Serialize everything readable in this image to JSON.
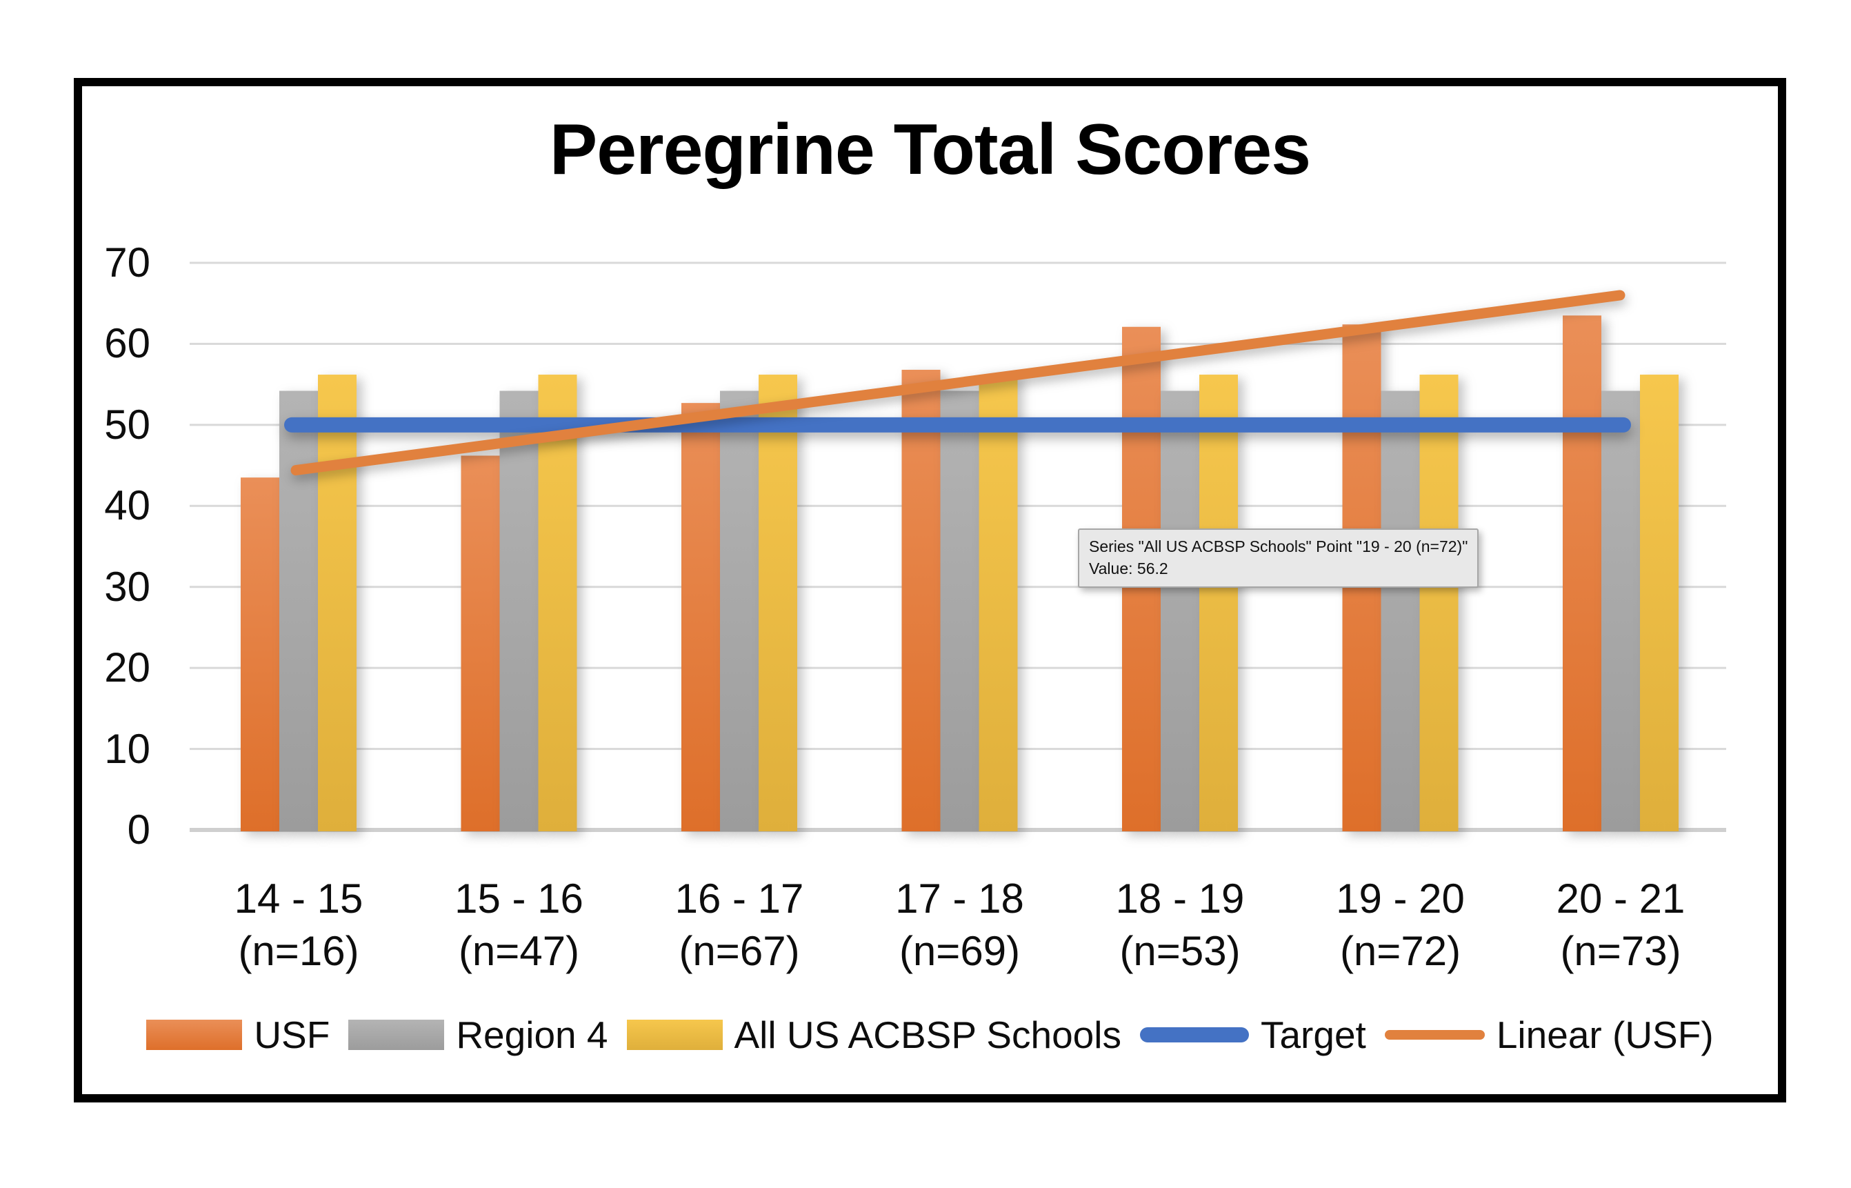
{
  "title": "Peregrine Total Scores",
  "chart_data": {
    "type": "bar",
    "title": "Peregrine Total Scores",
    "categories": [
      "14 - 15",
      "15 - 16",
      "16 - 17",
      "17 - 18",
      "18 - 19",
      "19 - 20",
      "20 - 21"
    ],
    "category_sublabels": [
      "(n=16)",
      "(n=47)",
      "(n=67)",
      "(n=69)",
      "(n=53)",
      "(n=72)",
      "(n=73)"
    ],
    "yticks": [
      "0",
      "10",
      "20",
      "30",
      "40",
      "50",
      "60",
      "70"
    ],
    "ylim": [
      0,
      70
    ],
    "grid": true,
    "legend_position": "bottom",
    "series": [
      {
        "name": "USF",
        "kind": "bar",
        "color_top": "#EA8F58",
        "color_bottom": "#DE6F2A",
        "values": [
          43.5,
          46.2,
          52.7,
          56.8,
          62.1,
          62.4,
          63.5
        ]
      },
      {
        "name": "Region 4",
        "kind": "bar",
        "color_top": "#B4B4B4",
        "color_bottom": "#9C9C9C",
        "values": [
          54.2,
          54.2,
          54.2,
          54.2,
          54.2,
          54.2,
          54.2
        ]
      },
      {
        "name": "All US ACBSP Schools",
        "kind": "bar",
        "color_top": "#F6C74D",
        "color_bottom": "#DFAF3B",
        "values": [
          56.2,
          56.2,
          56.2,
          56.2,
          56.2,
          56.2,
          56.2
        ]
      },
      {
        "name": "Target",
        "kind": "line",
        "color": "#4472C4",
        "values": [
          50,
          50,
          50,
          50,
          50,
          50,
          50
        ]
      },
      {
        "name": "Linear (USF)",
        "kind": "trendline",
        "color": "#E1813E",
        "start": 44.4,
        "end": 66.0
      }
    ]
  },
  "tooltip": {
    "line1": "Series \"All US ACBSP Schools\" Point \"19 - 20 (n=72)\"",
    "line2": "Value: 56.2"
  },
  "colors": {
    "gridline": "#D9D9D9",
    "axis_line": "#CFCFCF",
    "frame_border": "#000000"
  }
}
